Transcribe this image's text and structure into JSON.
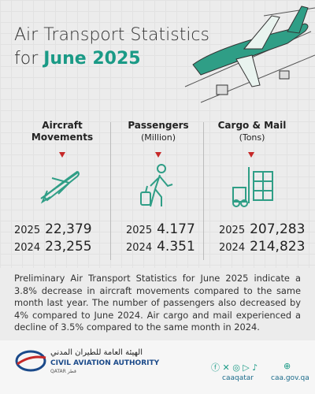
{
  "header": {
    "title": "Air Transport Statistics",
    "title_for": "for",
    "title_highlight": "June 2025"
  },
  "columns": [
    {
      "title": "Aircraft Movements",
      "unit": null,
      "rows": [
        {
          "year": "2025",
          "value": "22,379"
        },
        {
          "year": "2024",
          "value": "23,255"
        }
      ]
    },
    {
      "title": "Passengers",
      "unit": "(Million)",
      "rows": [
        {
          "year": "2025",
          "value": "4.177"
        },
        {
          "year": "2024",
          "value": "4.351"
        }
      ]
    },
    {
      "title": "Cargo & Mail",
      "unit": "(Tons)",
      "rows": [
        {
          "year": "2025",
          "value": "207,283"
        },
        {
          "year": "2024",
          "value": "214,823"
        }
      ]
    }
  ],
  "summary": "Preliminary Air Transport Statistics for June 2025 indicate a 3.8% decrease in aircraft movements compared to the same month last year. The number of passengers also decreased by 4% compared to June 2024. Air cargo and mail experienced a decline of 3.5% compared to the same month in 2024.",
  "footer": {
    "org_arabic": "الهيئة العامة للطيران المدني",
    "org_english": "CIVIL AVIATION AUTHORITY",
    "country": "QATAR قطر",
    "social_handle": "caaqatar",
    "website": "caa.gov.qa"
  }
}
